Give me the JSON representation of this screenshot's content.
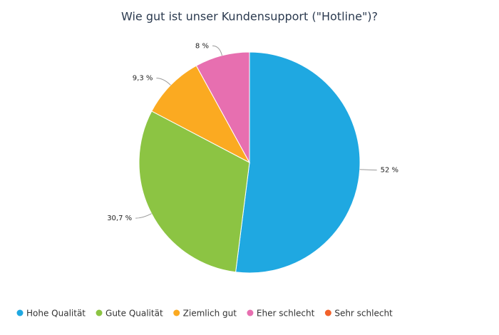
{
  "chart_data": {
    "type": "pie",
    "title": "Wie gut ist unser Kundensupport (\"Hotline\")?",
    "categories": [
      "Hohe Qualität",
      "Gute Qualität",
      "Ziemlich gut",
      "Eher schlecht",
      "Sehr schlecht"
    ],
    "values": [
      52,
      30.7,
      9.3,
      8,
      0
    ],
    "value_labels": [
      "52 %",
      "30,7 %",
      "9,3 %",
      "8 %",
      null
    ],
    "colors": [
      "#1fa8e1",
      "#8cc443",
      "#fbaa21",
      "#e76fb0",
      "#f2622b"
    ],
    "legend": "bottom"
  }
}
